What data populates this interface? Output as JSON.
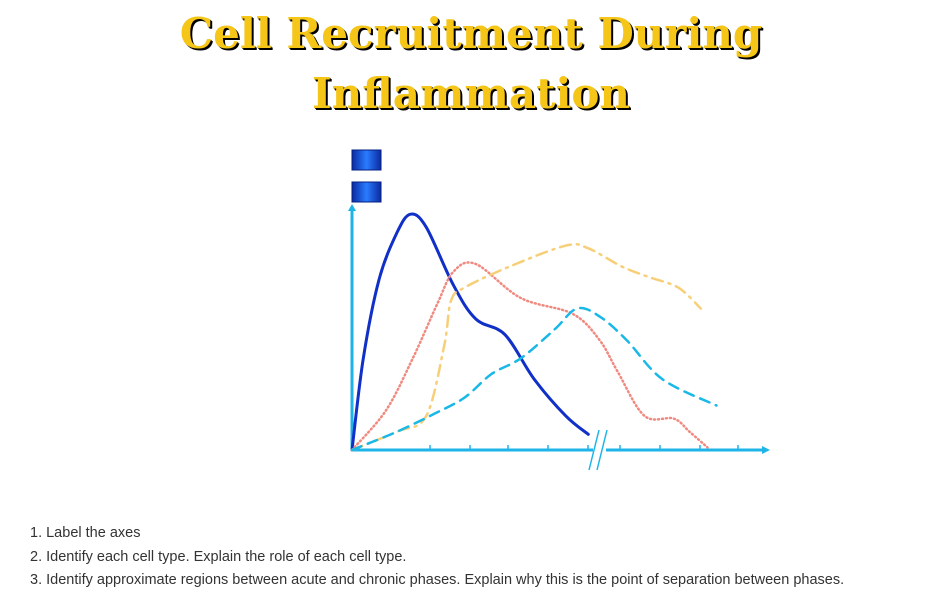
{
  "title": {
    "line1": "Cell Recruitment During",
    "line2": "Inflammation"
  },
  "chart_data": {
    "type": "line",
    "title": "Cell Recruitment During Inflammation",
    "xlabel": "",
    "ylabel": "",
    "axis_break": true,
    "legend_swatches": 2,
    "colors": {
      "axis": "#1eb4e8",
      "solid": "#1030c8",
      "dotted": "#f08a80",
      "dashdot": "#f7cf78",
      "dashed": "#19b8e6",
      "swatch": "#1560e0"
    },
    "series": [
      {
        "style": "solid",
        "x": [
          0,
          0.05,
          0.12,
          0.2,
          0.26,
          0.33,
          0.45,
          0.55,
          0.68,
          0.81,
          0.95,
          1.05
        ],
        "y": [
          0,
          0.35,
          0.65,
          0.83,
          0.9,
          0.85,
          0.63,
          0.5,
          0.44,
          0.27,
          0.13,
          0.06
        ]
      },
      {
        "style": "dotted",
        "x": [
          0,
          0.15,
          0.27,
          0.38,
          0.45,
          0.55,
          0.75,
          0.98,
          1.1,
          1.18,
          1.3,
          1.43,
          1.5,
          1.58
        ],
        "y": [
          0,
          0.15,
          0.35,
          0.56,
          0.68,
          0.71,
          0.58,
          0.52,
          0.42,
          0.3,
          0.13,
          0.12,
          0.07,
          0.01
        ]
      },
      {
        "style": "dashdot",
        "x": [
          0,
          0.2,
          0.33,
          0.41,
          0.44,
          0.5,
          0.7,
          0.95,
          1.05,
          1.2,
          1.32,
          1.45,
          1.55
        ],
        "y": [
          0,
          0.07,
          0.13,
          0.4,
          0.57,
          0.62,
          0.7,
          0.78,
          0.77,
          0.7,
          0.66,
          0.62,
          0.54
        ]
      },
      {
        "style": "dashed",
        "x": [
          0,
          0.2,
          0.37,
          0.5,
          0.62,
          0.75,
          0.9,
          1.0,
          1.1,
          1.22,
          1.38,
          1.62
        ],
        "y": [
          0,
          0.07,
          0.14,
          0.2,
          0.29,
          0.35,
          0.46,
          0.54,
          0.51,
          0.42,
          0.27,
          0.17
        ]
      }
    ]
  },
  "questions": [
    "1. Label the axes",
    "2. Identify each cell type.  Explain the role of each cell type.",
    "3. Identify approximate regions between acute and chronic phases.  Explain why this is the point of separation between phases."
  ]
}
